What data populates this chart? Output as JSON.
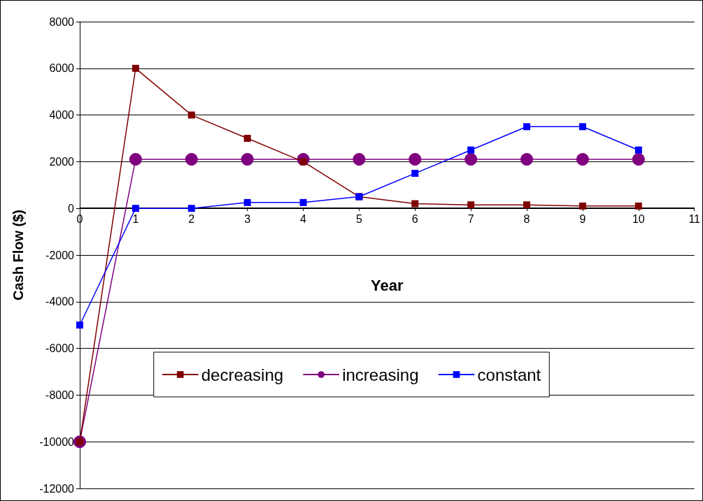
{
  "chart_data": {
    "type": "line",
    "xlabel": "Year",
    "ylabel": "Cash Flow ($)",
    "x": [
      0,
      1,
      2,
      3,
      4,
      5,
      6,
      7,
      8,
      9,
      10
    ],
    "series": [
      {
        "name": "decreasing",
        "color": "#800000",
        "marker": "square",
        "values": [
          -10000,
          6000,
          4000,
          3000,
          2000,
          500,
          200,
          150,
          150,
          100,
          100
        ]
      },
      {
        "name": "increasing",
        "color": "#800080",
        "marker": "circle",
        "values": [
          -10000,
          2100,
          2100,
          2100,
          2100,
          2100,
          2100,
          2100,
          2100,
          2100,
          2100
        ]
      },
      {
        "name": "constant",
        "color": "#0000ff",
        "marker": "square",
        "values": [
          -5000,
          0,
          0,
          250,
          250,
          500,
          1500,
          2500,
          3500,
          3500,
          2500
        ]
      }
    ],
    "xlim": [
      0,
      11
    ],
    "xticks": [
      0,
      1,
      2,
      3,
      4,
      5,
      6,
      7,
      8,
      9,
      10,
      11
    ],
    "ylim": [
      -12000,
      8000
    ],
    "yticks": [
      -12000,
      -10000,
      -8000,
      -6000,
      -4000,
      -2000,
      0,
      2000,
      4000,
      6000,
      8000
    ],
    "grid": "y",
    "legend": "bottom"
  }
}
